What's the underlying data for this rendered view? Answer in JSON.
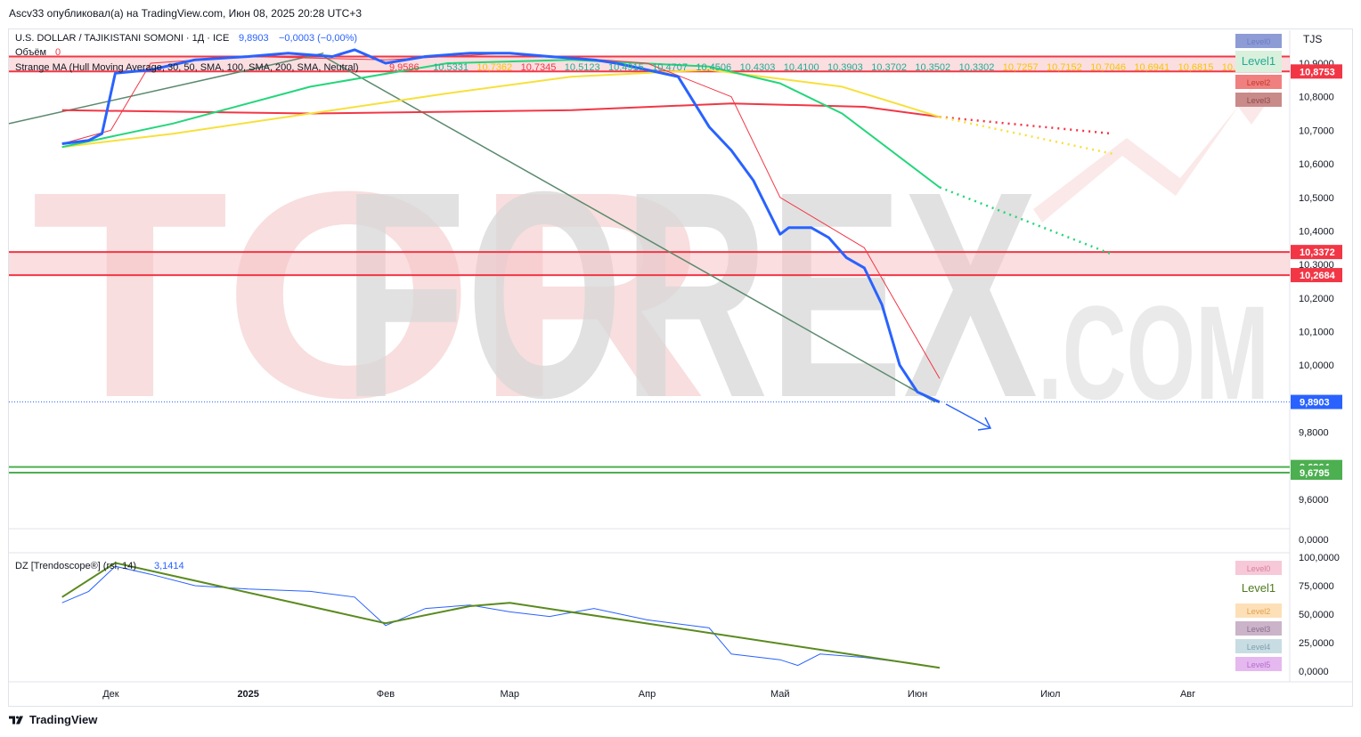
{
  "header": {
    "text": "Ascv33 опубликовал(а) на TradingView.com, Июн 08, 2025 20:28 UTC+3"
  },
  "footer": {
    "brand": "TradingView"
  },
  "watermark": {
    "main": "TORFOREX",
    "suffix": ".COM"
  },
  "legend": {
    "symbol": "U.S. DOLLAR / TAJIKISTANI SOMONI · 1Д · ICE",
    "symbol_value": "9,8903",
    "symbol_change": "−0,0003 (−0,00%)",
    "volume_label": "Объём",
    "volume_value": "0",
    "ma_label": "Strange MA (Hull Moving Average, 30, 50, SMA, 100, SMA, 200, SMA, Neutral)",
    "ma_values": [
      {
        "v": "9,9586",
        "c": "#f23645"
      },
      {
        "v": "10,5331",
        "c": "#22ab94"
      },
      {
        "v": "10,7362",
        "c": "#f7c500"
      },
      {
        "v": "10,7345",
        "c": "#f23645"
      },
      {
        "v": "10,5123",
        "c": "#22ab94"
      },
      {
        "v": "10,4915",
        "c": "#22ab94"
      },
      {
        "v": "10,4707",
        "c": "#22ab94"
      },
      {
        "v": "10,4506",
        "c": "#22ab94"
      },
      {
        "v": "10,4303",
        "c": "#22ab94"
      },
      {
        "v": "10,4100",
        "c": "#22ab94"
      },
      {
        "v": "10,3903",
        "c": "#22ab94"
      },
      {
        "v": "10,3702",
        "c": "#22ab94"
      },
      {
        "v": "10,3502",
        "c": "#22ab94"
      },
      {
        "v": "10,3302",
        "c": "#22ab94"
      },
      {
        "v": "10,7257",
        "c": "#f7c500"
      },
      {
        "v": "10,7152",
        "c": "#f7c500"
      },
      {
        "v": "10,7046",
        "c": "#f7c500"
      },
      {
        "v": "10,6941",
        "c": "#f7c500"
      },
      {
        "v": "10,6815",
        "c": "#f7c500"
      },
      {
        "v": "10,6...",
        "c": "#f7c500"
      }
    ],
    "rsi_label": "DZ [Trendoscope®] (rsi, 14)",
    "rsi_value": "3,1414"
  },
  "main_levels": [
    {
      "name": "Level0",
      "color": "#8e9cd6",
      "text_color": "#6b7bc4"
    },
    {
      "name": "Level1",
      "color": "#d9f0dc",
      "text_color": "#22ab94"
    },
    {
      "name": "Level2",
      "color": "#f08080",
      "text_color": "#c0392b"
    },
    {
      "name": "Level3",
      "color": "#c98a8a",
      "text_color": "#8e4b4b"
    }
  ],
  "rsi_levels": [
    {
      "name": "Level0",
      "color": "#f7c8d8",
      "text_color": "#d6809c"
    },
    {
      "name": "Level1",
      "color": "#ffffff",
      "text_color": "#4e7a1e"
    },
    {
      "name": "Level2",
      "color": "#fde0b8",
      "text_color": "#e0a050"
    },
    {
      "name": "Level3",
      "color": "#cbb3c9",
      "text_color": "#8e6f8c"
    },
    {
      "name": "Level4",
      "color": "#c8dde3",
      "text_color": "#7da0ab"
    },
    {
      "name": "Level5",
      "color": "#e6b8f0",
      "text_color": "#b26fcc"
    }
  ],
  "chart_data": {
    "type": "line",
    "currency": "TJS",
    "x_labels": [
      "Дек",
      "2025",
      "Фев",
      "Мар",
      "Апр",
      "Май",
      "Июн",
      "Июл",
      "Авг"
    ],
    "price_ticks": [
      "10,9000",
      "10,8000",
      "10,7000",
      "10,6000",
      "10,5000",
      "10,4000",
      "10,3000",
      "10,2000",
      "10,1000",
      "10,0000",
      "9,8000",
      "9,6000"
    ],
    "volume_ticks": [
      "0,0000"
    ],
    "rsi_ticks": [
      "100,0000",
      "75,0000",
      "50,0000",
      "25,0000",
      "0,0000"
    ],
    "ylim": [
      9.55,
      10.95
    ],
    "horizontal_levels": [
      {
        "value": 10.8753,
        "label": "10,8753",
        "color": "#f23645"
      },
      {
        "value": 10.3372,
        "label": "10,3372",
        "color": "#f23645"
      },
      {
        "value": 10.2684,
        "label": "10,2684",
        "color": "#f23645"
      },
      {
        "value": 9.6964,
        "label": "9,6964",
        "color": "#4caf50"
      },
      {
        "value": 9.6795,
        "label": "9,6795",
        "color": "#4caf50"
      }
    ],
    "last_price": {
      "value": 9.8903,
      "label": "9,8903"
    },
    "series": [
      {
        "name": "U.S. DOLLAR / TAJIKISTANI SOMONI",
        "color": "#2962ff",
        "x": [
          "2024-11-20",
          "2024-11-26",
          "2024-11-29",
          "2024-12-02",
          "2024-12-10",
          "2024-12-20",
          "2025-01-01",
          "2025-01-10",
          "2025-01-20",
          "2025-01-25",
          "2025-02-01",
          "2025-02-10",
          "2025-02-20",
          "2025-03-01",
          "2025-03-10",
          "2025-03-20",
          "2025-03-25",
          "2025-04-01",
          "2025-04-08",
          "2025-04-15",
          "2025-04-20",
          "2025-04-25",
          "2025-05-01",
          "2025-05-03",
          "2025-05-08",
          "2025-05-12",
          "2025-05-16",
          "2025-05-20",
          "2025-05-24",
          "2025-05-28",
          "2025-06-01",
          "2025-06-06"
        ],
        "values": [
          10.66,
          10.67,
          10.69,
          10.87,
          10.88,
          10.91,
          10.92,
          10.93,
          10.92,
          10.94,
          10.9,
          10.92,
          10.93,
          10.93,
          10.92,
          10.91,
          10.9,
          10.88,
          10.86,
          10.71,
          10.64,
          10.55,
          10.39,
          10.41,
          10.41,
          10.38,
          10.32,
          10.29,
          10.18,
          10.0,
          9.92,
          9.89
        ]
      },
      {
        "name": "Hull MA",
        "color": "#f23645",
        "x": [
          "2024-11-20",
          "2024-12-01",
          "2024-12-10",
          "2025-01-01",
          "2025-02-01",
          "2025-03-01",
          "2025-04-01",
          "2025-04-20",
          "2025-05-01",
          "2025-05-20",
          "2025-06-06"
        ],
        "values": [
          10.66,
          10.7,
          10.9,
          10.92,
          10.91,
          10.93,
          10.9,
          10.8,
          10.5,
          10.35,
          9.96
        ]
      },
      {
        "name": "SMA 50",
        "color": "#22d67a",
        "x": [
          "2024-11-20",
          "2024-12-15",
          "2025-01-15",
          "2025-02-15",
          "2025-03-15",
          "2025-04-15",
          "2025-05-01",
          "2025-05-15",
          "2025-06-06"
        ],
        "values": [
          10.65,
          10.72,
          10.83,
          10.9,
          10.91,
          10.89,
          10.84,
          10.75,
          10.53
        ]
      },
      {
        "name": "SMA 100",
        "color": "#f7e03a",
        "x": [
          "2024-11-20",
          "2024-12-15",
          "2025-01-15",
          "2025-02-15",
          "2025-03-15",
          "2025-04-15",
          "2025-05-15",
          "2025-06-06"
        ],
        "values": [
          10.65,
          10.69,
          10.75,
          10.81,
          10.86,
          10.88,
          10.83,
          10.74
        ]
      },
      {
        "name": "SMA 200",
        "color": "#f23645",
        "x": [
          "2024-11-20",
          "2025-01-15",
          "2025-03-15",
          "2025-04-20",
          "2025-05-20",
          "2025-06-06"
        ],
        "values": [
          10.76,
          10.75,
          10.76,
          10.78,
          10.77,
          10.74
        ]
      }
    ],
    "rsi": {
      "ylim": [
        0,
        100
      ],
      "x": [
        "2024-11-20",
        "2024-11-26",
        "2024-12-02",
        "2024-12-10",
        "2024-12-20",
        "2025-01-01",
        "2025-01-15",
        "2025-01-25",
        "2025-02-01",
        "2025-02-10",
        "2025-02-20",
        "2025-03-01",
        "2025-03-10",
        "2025-03-20",
        "2025-04-01",
        "2025-04-15",
        "2025-04-20",
        "2025-05-01",
        "2025-05-05",
        "2025-05-10",
        "2025-05-20",
        "2025-06-01",
        "2025-06-06"
      ],
      "values": [
        60,
        70,
        92,
        85,
        75,
        72,
        70,
        65,
        40,
        55,
        58,
        52,
        48,
        55,
        45,
        38,
        15,
        10,
        5,
        15,
        12,
        6,
        3
      ]
    }
  }
}
